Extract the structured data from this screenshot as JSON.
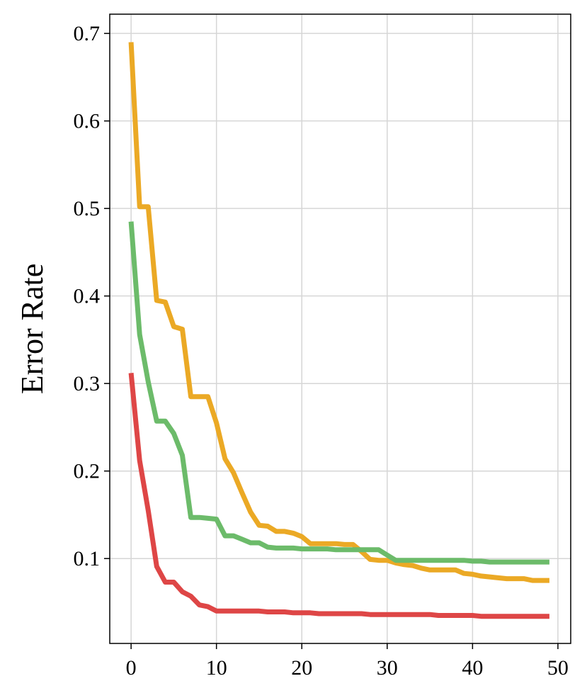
{
  "chart_data": {
    "type": "line",
    "title": "",
    "xlabel": "",
    "ylabel": "Error Rate",
    "xlim": [
      -2.5,
      51.5
    ],
    "ylim": [
      0.003,
      0.722
    ],
    "xticks": [
      0,
      10,
      20,
      30,
      40,
      50
    ],
    "yticks": [
      0.1,
      0.2,
      0.3,
      0.4,
      0.5,
      0.6,
      0.7
    ],
    "xtick_labels": [
      "0",
      "10",
      "20",
      "30",
      "40",
      "50"
    ],
    "ytick_labels": [
      "0.1",
      "0.2",
      "0.3",
      "0.4",
      "0.5",
      "0.6",
      "0.7"
    ],
    "grid": true,
    "legend": "none",
    "series": [
      {
        "color": "#eba925",
        "x": [
          0,
          1,
          2,
          3,
          4,
          5,
          6,
          7,
          8,
          9,
          10,
          11,
          12,
          13,
          14,
          15,
          16,
          17,
          18,
          19,
          20,
          21,
          22,
          23,
          24,
          25,
          26,
          27,
          28,
          29,
          30,
          31,
          32,
          33,
          34,
          35,
          36,
          37,
          38,
          39,
          40,
          41,
          42,
          43,
          44,
          45,
          46,
          47,
          48,
          49
        ],
        "values": [
          0.69,
          0.502,
          0.502,
          0.395,
          0.393,
          0.365,
          0.362,
          0.285,
          0.285,
          0.285,
          0.255,
          0.214,
          0.198,
          0.175,
          0.153,
          0.138,
          0.137,
          0.131,
          0.131,
          0.129,
          0.125,
          0.117,
          0.117,
          0.117,
          0.117,
          0.116,
          0.116,
          0.108,
          0.099,
          0.098,
          0.098,
          0.095,
          0.093,
          0.092,
          0.089,
          0.087,
          0.087,
          0.087,
          0.087,
          0.083,
          0.082,
          0.08,
          0.079,
          0.078,
          0.077,
          0.077,
          0.077,
          0.075,
          0.075,
          0.075
        ]
      },
      {
        "color": "#6cbb6a",
        "x": [
          0,
          1,
          2,
          3,
          4,
          5,
          6,
          7,
          8,
          9,
          10,
          11,
          12,
          13,
          14,
          15,
          16,
          17,
          18,
          19,
          20,
          21,
          22,
          23,
          24,
          25,
          26,
          27,
          28,
          29,
          30,
          31,
          32,
          33,
          34,
          35,
          36,
          37,
          38,
          39,
          40,
          41,
          42,
          43,
          44,
          45,
          46,
          47,
          48,
          49
        ],
        "values": [
          0.485,
          0.356,
          0.302,
          0.257,
          0.257,
          0.243,
          0.218,
          0.147,
          0.147,
          0.146,
          0.145,
          0.126,
          0.126,
          0.122,
          0.118,
          0.118,
          0.113,
          0.112,
          0.112,
          0.112,
          0.111,
          0.111,
          0.111,
          0.111,
          0.11,
          0.11,
          0.11,
          0.11,
          0.11,
          0.11,
          0.104,
          0.098,
          0.098,
          0.098,
          0.098,
          0.098,
          0.098,
          0.098,
          0.098,
          0.098,
          0.097,
          0.097,
          0.096,
          0.096,
          0.096,
          0.096,
          0.096,
          0.096,
          0.096,
          0.096
        ]
      },
      {
        "color": "#de4646",
        "x": [
          0,
          1,
          2,
          3,
          4,
          5,
          6,
          7,
          8,
          9,
          10,
          11,
          12,
          13,
          14,
          15,
          16,
          17,
          18,
          19,
          20,
          21,
          22,
          23,
          24,
          25,
          26,
          27,
          28,
          29,
          30,
          31,
          32,
          33,
          34,
          35,
          36,
          37,
          38,
          39,
          40,
          41,
          42,
          43,
          44,
          45,
          46,
          47,
          48,
          49
        ],
        "values": [
          0.312,
          0.212,
          0.155,
          0.091,
          0.073,
          0.073,
          0.062,
          0.057,
          0.047,
          0.045,
          0.04,
          0.04,
          0.04,
          0.04,
          0.04,
          0.04,
          0.039,
          0.039,
          0.039,
          0.038,
          0.038,
          0.038,
          0.037,
          0.037,
          0.037,
          0.037,
          0.037,
          0.037,
          0.036,
          0.036,
          0.036,
          0.036,
          0.036,
          0.036,
          0.036,
          0.036,
          0.035,
          0.035,
          0.035,
          0.035,
          0.035,
          0.034,
          0.034,
          0.034,
          0.034,
          0.034,
          0.034,
          0.034,
          0.034,
          0.034
        ]
      }
    ]
  }
}
